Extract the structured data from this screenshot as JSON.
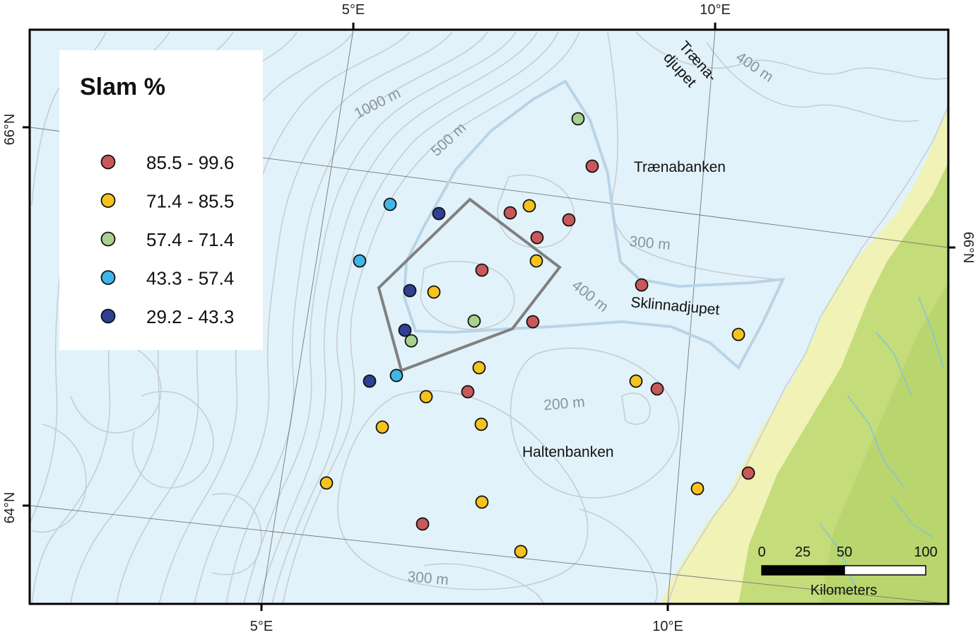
{
  "axis_labels": {
    "top_lon": [
      "5°E",
      "10°E"
    ],
    "bottom_lon": [
      "5°E",
      "10°E"
    ],
    "left_lat": [
      "66°N",
      "64°N"
    ],
    "right_lat": [
      "66°N"
    ]
  },
  "legend": {
    "title": "Slam %",
    "classes": [
      {
        "label": "85.5 - 99.6",
        "color": "#c8585a"
      },
      {
        "label": "71.4 - 85.5",
        "color": "#f6c21e"
      },
      {
        "label": "57.4 - 71.4",
        "color": "#a9d18e"
      },
      {
        "label": "43.3 - 57.4",
        "color": "#41b6e6"
      },
      {
        "label": "29.2 - 43.3",
        "color": "#2e3f94"
      }
    ]
  },
  "depth_labels": [
    "1000 m",
    "500 m",
    "400 m",
    "300 m",
    "400 m",
    "200 m",
    "300 m"
  ],
  "place_names": {
    "traenadjupet_line1": "Træna-",
    "traenadjupet_line2": "djupet",
    "traenabanken": "Trænabanken",
    "sklinnadjupet": "Sklinnadjupet",
    "haltenbanken": "Haltenbanken"
  },
  "scale_bar": {
    "ticks": [
      "0",
      "25",
      "50",
      "100"
    ],
    "unit": "Kilometers"
  },
  "colors": {
    "sea": "#e2f2fa",
    "land_green": "#c4dc7a",
    "land_light": "#f0f2b6",
    "contour": "#c7cdd1",
    "study_area": "#808080",
    "trough_outline": "#b9d4e6"
  }
}
